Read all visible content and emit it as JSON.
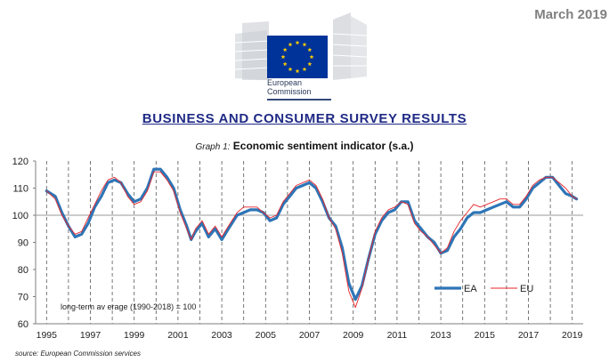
{
  "header": {
    "date": "March 2019",
    "logo_line1": "European",
    "logo_line2": "Commission",
    "title": "BUSINESS AND CONSUMER SURVEY RESULTS"
  },
  "graph": {
    "number_label": "Graph 1:",
    "title": "Economic sentiment indicator (s.a.)",
    "source": "source: European Commission services"
  },
  "colors": {
    "ea": "#2e75b6",
    "eu": "#e8242a",
    "emblem": "#003399",
    "stars": "#ffcc00"
  },
  "chart_data": {
    "type": "line",
    "xlim": [
      1994.5,
      2019.5
    ],
    "ylim": [
      60,
      120
    ],
    "y_ticks": [
      60,
      70,
      80,
      90,
      100,
      110,
      120
    ],
    "x_tick_labels": [
      "1995",
      "1997",
      "1999",
      "2001",
      "2003",
      "2005",
      "2007",
      "2009",
      "2011",
      "2013",
      "2015",
      "2017",
      "2019"
    ],
    "x_tick_values": [
      1995,
      1997,
      1999,
      2001,
      2003,
      2005,
      2007,
      2009,
      2011,
      2013,
      2015,
      2017,
      2019
    ],
    "vertical_gridlines": "dashed, yearly",
    "reference_line": 100,
    "annotation": "long-term av erage (1990-2018) = 100",
    "legend_position": "bottom-right",
    "series": [
      {
        "name": "EA",
        "x": [
          1995.0,
          1995.4,
          1995.7,
          1996.0,
          1996.3,
          1996.6,
          1996.9,
          1997.2,
          1997.5,
          1997.8,
          1998.1,
          1998.4,
          1998.7,
          1999.0,
          1999.3,
          1999.6,
          1999.9,
          2000.2,
          2000.5,
          2000.8,
          2001.1,
          2001.4,
          2001.6,
          2001.8,
          2002.1,
          2002.4,
          2002.7,
          2003.0,
          2003.3,
          2003.7,
          2004.0,
          2004.3,
          2004.6,
          2004.9,
          2005.2,
          2005.5,
          2005.8,
          2006.1,
          2006.4,
          2006.7,
          2007.0,
          2007.3,
          2007.6,
          2007.9,
          2008.2,
          2008.5,
          2008.8,
          2009.1,
          2009.4,
          2009.7,
          2010.0,
          2010.3,
          2010.6,
          2010.9,
          2011.2,
          2011.5,
          2011.8,
          2012.1,
          2012.4,
          2012.7,
          2013.0,
          2013.3,
          2013.6,
          2013.9,
          2014.2,
          2014.5,
          2014.8,
          2015.1,
          2015.4,
          2015.7,
          2016.0,
          2016.3,
          2016.6,
          2016.9,
          2017.2,
          2017.5,
          2017.8,
          2018.1,
          2018.4,
          2018.7,
          2019.0,
          2019.2
        ],
        "values": [
          109,
          107,
          101,
          96,
          92,
          93,
          97,
          103,
          107,
          112,
          113,
          112,
          108,
          105,
          106,
          110,
          117,
          117,
          114,
          110,
          102,
          96,
          91,
          94,
          97,
          92,
          95,
          91,
          95,
          100,
          101,
          102,
          102,
          101,
          98,
          99,
          104,
          107,
          110,
          111,
          112,
          110,
          105,
          99,
          96,
          88,
          75,
          69,
          74,
          84,
          93,
          98,
          101,
          102,
          105,
          105,
          98,
          95,
          92,
          90,
          86,
          87,
          92,
          95,
          99,
          101,
          101,
          102,
          103,
          104,
          105,
          103,
          103,
          106,
          110,
          112,
          114,
          114,
          111,
          108,
          107,
          106
        ]
      },
      {
        "name": "EU",
        "x": [
          1995.0,
          1995.4,
          1995.7,
          1996.0,
          1996.3,
          1996.6,
          1996.9,
          1997.2,
          1997.5,
          1997.8,
          1998.1,
          1998.4,
          1998.7,
          1999.0,
          1999.3,
          1999.6,
          1999.9,
          2000.2,
          2000.5,
          2000.8,
          2001.1,
          2001.4,
          2001.6,
          2001.8,
          2002.1,
          2002.4,
          2002.7,
          2003.0,
          2003.3,
          2003.7,
          2004.0,
          2004.3,
          2004.6,
          2004.9,
          2005.2,
          2005.5,
          2005.8,
          2006.1,
          2006.4,
          2006.7,
          2007.0,
          2007.3,
          2007.6,
          2007.9,
          2008.2,
          2008.5,
          2008.8,
          2009.1,
          2009.4,
          2009.7,
          2010.0,
          2010.3,
          2010.6,
          2010.9,
          2011.2,
          2011.5,
          2011.8,
          2012.1,
          2012.4,
          2012.7,
          2013.0,
          2013.3,
          2013.6,
          2013.9,
          2014.2,
          2014.5,
          2014.8,
          2015.1,
          2015.4,
          2015.7,
          2016.0,
          2016.3,
          2016.6,
          2016.9,
          2017.2,
          2017.5,
          2017.8,
          2018.1,
          2018.4,
          2018.7,
          2019.0,
          2019.2
        ],
        "values": [
          109,
          106,
          100,
          96,
          93,
          94,
          99,
          104,
          109,
          113,
          114,
          112,
          107,
          104,
          105,
          109,
          116,
          116,
          113,
          109,
          101,
          95,
          91,
          95,
          98,
          93,
          96,
          92,
          96,
          101,
          103,
          103,
          103,
          101,
          99,
          100,
          105,
          108,
          111,
          112,
          113,
          111,
          106,
          99,
          95,
          86,
          72,
          66,
          73,
          84,
          94,
          99,
          102,
          103,
          105,
          104,
          97,
          94,
          92,
          89,
          86,
          88,
          94,
          98,
          101,
          104,
          103,
          104,
          105,
          106,
          106,
          104,
          104,
          107,
          111,
          113,
          114,
          114,
          112,
          110,
          107,
          106
        ]
      }
    ]
  }
}
